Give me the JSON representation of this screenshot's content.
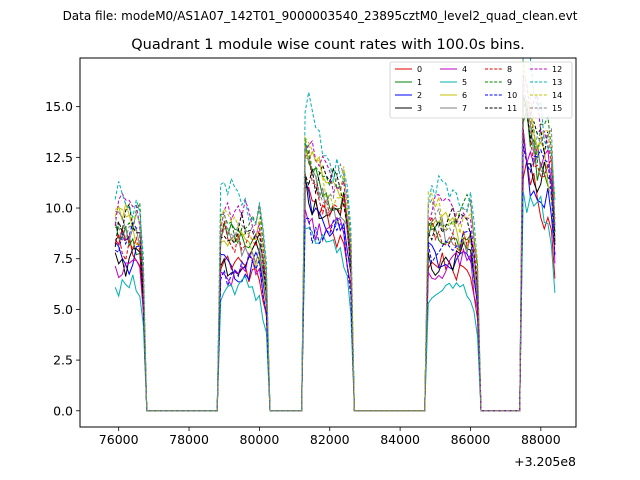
{
  "suptitle": "Data file: modeM0/AS1A07_142T01_9000003540_23895cztM0_level2_quad_clean.evt",
  "chart_data": {
    "type": "line",
    "title": "Quadrant 1 module wise count rates with 100.0s bins.",
    "xlabel": "",
    "ylabel": "",
    "x_offset_label": "+3.205e8",
    "xlim": [
      74900,
      89000
    ],
    "ylim": [
      -0.8,
      17.4
    ],
    "x_ticks": [
      76000,
      78000,
      80000,
      82000,
      84000,
      86000,
      88000
    ],
    "x_tick_labels": [
      "76000",
      "78000",
      "80000",
      "82000",
      "84000",
      "86000",
      "88000"
    ],
    "y_ticks": [
      0.0,
      2.5,
      5.0,
      7.5,
      10.0,
      12.5,
      15.0
    ],
    "y_tick_labels": [
      "0.0",
      "2.5",
      "5.0",
      "7.5",
      "10.0",
      "12.5",
      "15.0"
    ],
    "legend_position": "top-right",
    "time_segments": [
      {
        "start": 75900,
        "end": 76700
      },
      {
        "start": 78900,
        "end": 80200
      },
      {
        "start": 81300,
        "end": 82600
      },
      {
        "start": 84800,
        "end": 86200
      },
      {
        "start": 87500,
        "end": 88400
      }
    ],
    "gap_zero_ranges": [
      [
        76800,
        78800
      ],
      [
        80300,
        81200
      ],
      [
        82700,
        84700
      ],
      [
        86300,
        87400
      ]
    ],
    "series": [
      {
        "name": "0",
        "color": "#e00000",
        "dash": "solid",
        "seg_levels": [
          8.2,
          7.0,
          8.8,
          7.0,
          9.8
        ]
      },
      {
        "name": "1",
        "color": "#008000",
        "dash": "solid",
        "seg_levels": [
          8.6,
          8.5,
          10.2,
          8.4,
          11.8
        ]
      },
      {
        "name": "2",
        "color": "#0000ff",
        "dash": "solid",
        "seg_levels": [
          7.6,
          7.2,
          8.8,
          7.4,
          10.2
        ]
      },
      {
        "name": "3",
        "color": "#000000",
        "dash": "solid",
        "seg_levels": [
          7.4,
          7.4,
          9.4,
          7.5,
          10.9
        ]
      },
      {
        "name": "4",
        "color": "#c000c0",
        "dash": "solid",
        "seg_levels": [
          7.1,
          6.9,
          8.4,
          7.2,
          11.5
        ]
      },
      {
        "name": "5",
        "color": "#00b0b0",
        "dash": "solid",
        "seg_levels": [
          6.1,
          5.9,
          7.7,
          5.9,
          9.2
        ]
      },
      {
        "name": "6",
        "color": "#c0c000",
        "dash": "solid",
        "seg_levels": [
          9.2,
          8.0,
          10.8,
          8.9,
          12.4
        ]
      },
      {
        "name": "7",
        "color": "#808080",
        "dash": "solid",
        "seg_levels": [
          8.9,
          8.2,
          10.0,
          8.6,
          12.1
        ]
      },
      {
        "name": "8",
        "color": "#e00000",
        "dash": "dashed",
        "seg_levels": [
          8.3,
          8.6,
          9.9,
          8.7,
          12.3
        ]
      },
      {
        "name": "9",
        "color": "#008000",
        "dash": "dashed",
        "seg_levels": [
          9.4,
          9.3,
          11.0,
          9.6,
          13.0
        ]
      },
      {
        "name": "10",
        "color": "#0000ff",
        "dash": "dashed",
        "seg_levels": [
          8.7,
          7.0,
          8.2,
          8.1,
          11.6
        ]
      },
      {
        "name": "11",
        "color": "#000000",
        "dash": "dashed",
        "seg_levels": [
          9.1,
          8.7,
          10.4,
          9.2,
          12.7
        ]
      },
      {
        "name": "12",
        "color": "#c000c0",
        "dash": "dashed",
        "seg_levels": [
          9.9,
          9.5,
          11.2,
          9.9,
          13.4
        ]
      },
      {
        "name": "13",
        "color": "#00b0b0",
        "dash": "dashed",
        "seg_levels": [
          10.6,
          10.3,
          12.3,
          10.5,
          14.2
        ]
      },
      {
        "name": "14",
        "color": "#c0c000",
        "dash": "dashed",
        "seg_levels": [
          9.7,
          9.0,
          11.0,
          9.8,
          13.3
        ]
      },
      {
        "name": "15",
        "color": "#808080",
        "dash": "dashed",
        "seg_levels": [
          9.5,
          9.2,
          10.8,
          9.7,
          13.1
        ]
      }
    ]
  }
}
